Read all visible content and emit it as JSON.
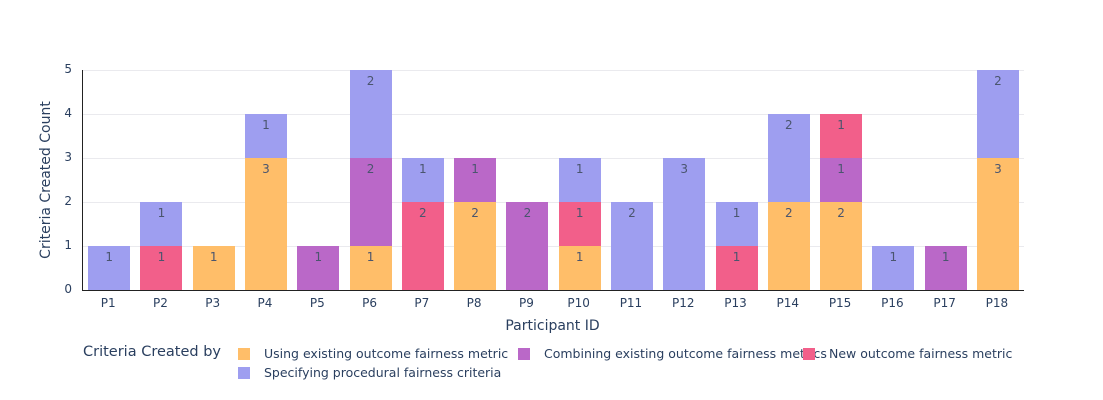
{
  "chart_data": {
    "type": "bar",
    "stacked": true,
    "title": "",
    "xlabel": "Participant ID",
    "ylabel": "Criteria Created Count",
    "ylim": [
      0,
      5
    ],
    "yticks": [
      0,
      1,
      2,
      3,
      4,
      5
    ],
    "grid": true,
    "legend_title": "Criteria Created by",
    "legend_position": "bottom",
    "categories": [
      "P1",
      "P2",
      "P3",
      "P4",
      "P5",
      "P6",
      "P7",
      "P8",
      "P9",
      "P10",
      "P11",
      "P12",
      "P13",
      "P14",
      "P15",
      "P16",
      "P17",
      "P18"
    ],
    "series": [
      {
        "name": "Using existing outcome fairness metric",
        "color": "#FFBE69",
        "values": [
          0,
          0,
          1,
          3,
          0,
          1,
          0,
          2,
          0,
          1,
          0,
          0,
          0,
          2,
          2,
          0,
          0,
          3
        ]
      },
      {
        "name": "Combining existing outcome fairness metrics",
        "color": "#BA68C8",
        "values": [
          0,
          0,
          0,
          0,
          1,
          2,
          0,
          1,
          2,
          0,
          0,
          0,
          0,
          0,
          1,
          0,
          1,
          0
        ]
      },
      {
        "name": "New outcome fairness metric",
        "color": "#F25F8A",
        "values": [
          0,
          1,
          0,
          0,
          0,
          0,
          2,
          0,
          0,
          1,
          0,
          0,
          1,
          0,
          1,
          0,
          0,
          0
        ]
      },
      {
        "name": "Specifying procedural fairness criteria",
        "color": "#9E9EF0",
        "values": [
          1,
          1,
          0,
          1,
          0,
          2,
          1,
          0,
          0,
          1,
          2,
          3,
          1,
          2,
          0,
          1,
          0,
          2
        ]
      }
    ],
    "colors": {
      "background": "#ffffff",
      "axis_line": "#222222",
      "grid_line": "#eaeaee",
      "tick_font": "#2a3f5f",
      "bar_label_font": "#4a556e"
    }
  }
}
